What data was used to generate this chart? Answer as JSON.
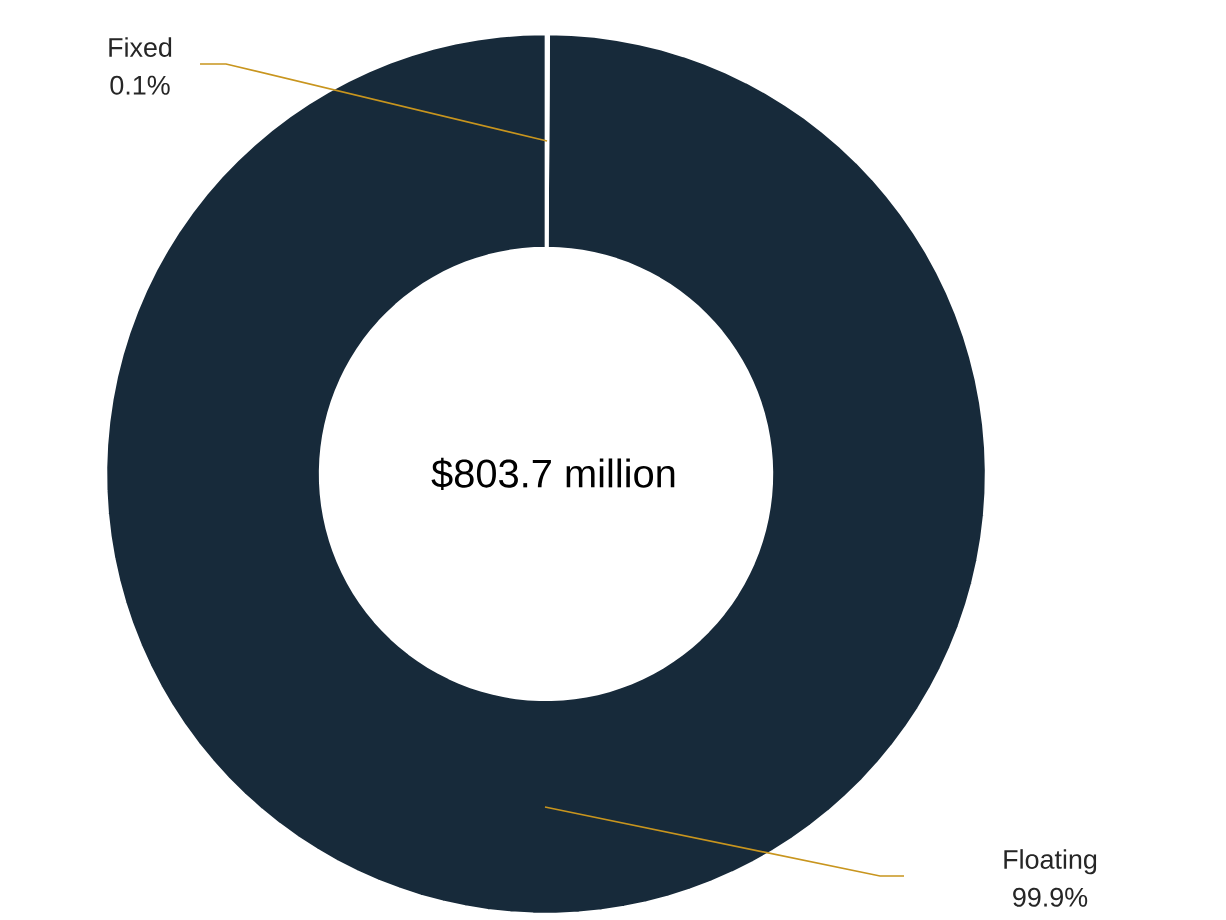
{
  "chart_data": {
    "type": "donut",
    "categories": [
      "Fixed",
      "Floating"
    ],
    "values": [
      0.1,
      99.9
    ],
    "colors": [
      "#ffffff",
      "#172a3a"
    ],
    "value_labels": [
      "0.1%",
      "99.9%"
    ],
    "annotations": [
      "$803.7 million"
    ]
  }
}
